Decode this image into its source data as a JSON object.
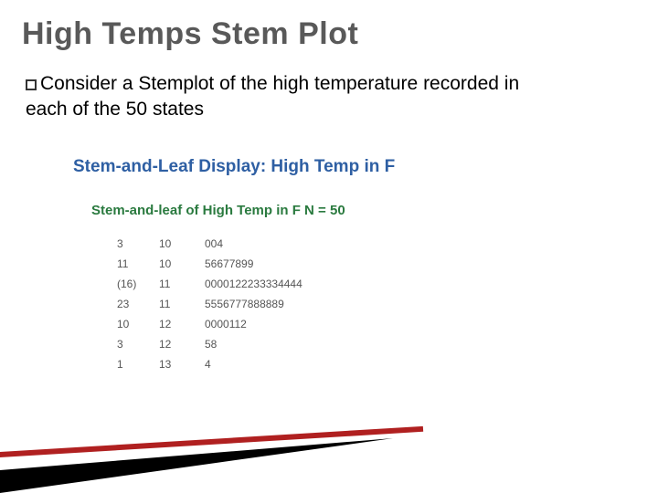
{
  "title": {
    "text": "High Temps Stem Plot",
    "color": "#595959",
    "fontsize": 34
  },
  "body": {
    "bullet_glyph": "box",
    "text": "Consider a Stemplot of the high temperature recorded in each of the 50 states",
    "color": "#000000",
    "fontsize": 21
  },
  "display": {
    "heading": "Stem-and-Leaf Display: High Temp in F",
    "heading_color": "#2e5fa3",
    "heading_fontsize": 19,
    "subheading": "Stem-and-leaf of High Temp in F   N = 50",
    "subheading_color": "#2a7a3f",
    "subheading_fontsize": 15,
    "row_fontsize": 12,
    "row_color": "#555555",
    "rows": [
      {
        "depth": "3",
        "stem": "10",
        "leaves": "004"
      },
      {
        "depth": "11",
        "stem": "10",
        "leaves": "56677899"
      },
      {
        "depth": "(16)",
        "stem": "11",
        "leaves": "0000122233334444"
      },
      {
        "depth": "23",
        "stem": "11",
        "leaves": "5556777888889"
      },
      {
        "depth": "10",
        "stem": "12",
        "leaves": "0000112"
      },
      {
        "depth": "3",
        "stem": "12",
        "leaves": "58"
      },
      {
        "depth": "1",
        "stem": "13",
        "leaves": "4"
      }
    ]
  },
  "decoration": {
    "wedge_fill": "#000000",
    "wedge_line": "#b02020"
  }
}
